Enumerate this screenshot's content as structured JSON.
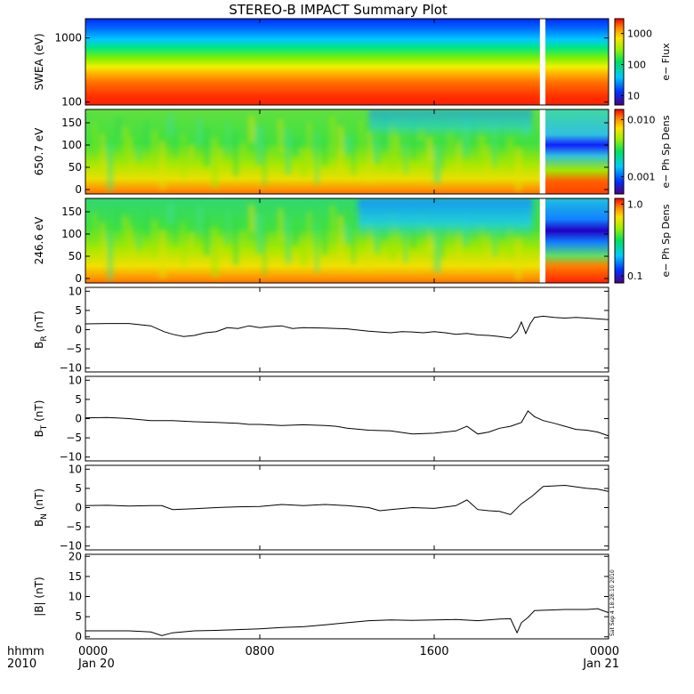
{
  "title": "STEREO-B IMPACT Summary Plot",
  "stamp": "Sat Sep  4 18:28:10 2010",
  "time_axis": {
    "row1_label": "hhmm",
    "row2_label": "2010",
    "ticks": [
      {
        "t": 0,
        "label": "0000",
        "date": "Jan 20"
      },
      {
        "t": 8,
        "label": "0800",
        "date": ""
      },
      {
        "t": 16,
        "label": "1600",
        "date": ""
      },
      {
        "t": 24,
        "label": "0000",
        "date": "Jan 21"
      }
    ],
    "xlim": [
      0,
      24
    ],
    "data_gap_hours": [
      20.85,
      21.1
    ]
  },
  "chart_data": [
    {
      "type": "heatmap",
      "id": "swea",
      "ylabel": "SWEA (eV)",
      "yscale": "log",
      "ylim": [
        90,
        2000
      ],
      "yticks": [
        {
          "v": 100,
          "label": "100"
        },
        {
          "v": 1000,
          "label": "1000"
        }
      ],
      "colorbar": {
        "label": "e− Flux",
        "scale": "log",
        "range": [
          5,
          3000
        ],
        "ticks": [
          {
            "v": 10,
            "label": "10"
          },
          {
            "v": 100,
            "label": "100"
          },
          {
            "v": 1000,
            "label": "1000"
          }
        ]
      },
      "description_bands_low_to_high_energy": [
        "high flux (red/orange) below ~250 eV",
        "yellow/green near 300-600 eV",
        "cyan/blue above ~900 eV"
      ]
    },
    {
      "type": "heatmap",
      "id": "pad650",
      "ylabel": "650.7 eV",
      "ylim": [
        -10,
        180
      ],
      "yticks": [
        {
          "v": 0,
          "label": "0"
        },
        {
          "v": 50,
          "label": "50"
        },
        {
          "v": 100,
          "label": "100"
        },
        {
          "v": 150,
          "label": "150"
        }
      ],
      "colorbar": {
        "label": "e− Ph Sp Dens",
        "scale": "log",
        "range": [
          0.0005,
          0.015
        ],
        "ticks": [
          {
            "v": 0.001,
            "label": "0.001"
          },
          {
            "v": 0.01,
            "label": "0.010"
          }
        ]
      }
    },
    {
      "type": "heatmap",
      "id": "pad246",
      "ylabel": "246.6 eV",
      "ylim": [
        -10,
        180
      ],
      "yticks": [
        {
          "v": 0,
          "label": "0"
        },
        {
          "v": 50,
          "label": "50"
        },
        {
          "v": 100,
          "label": "100"
        },
        {
          "v": 150,
          "label": "150"
        }
      ],
      "colorbar": {
        "label": "e− Ph Sp Dens",
        "scale": "log",
        "range": [
          0.08,
          1.2
        ],
        "ticks": [
          {
            "v": 0.1,
            "label": "0.1"
          },
          {
            "v": 1.0,
            "label": "1.0"
          }
        ]
      }
    },
    {
      "type": "line",
      "id": "br",
      "ylabel": "B",
      "ylabel_sub": "R",
      "ylabel_unit": " (nT)",
      "ylim": [
        -11,
        11
      ],
      "yticks": [
        {
          "v": -10,
          "label": "−10"
        },
        {
          "v": -5,
          "label": "−5"
        },
        {
          "v": 0,
          "label": "0"
        },
        {
          "v": 5,
          "label": "5"
        },
        {
          "v": 10,
          "label": "10"
        }
      ],
      "x": [
        0,
        1,
        2,
        3,
        3.6,
        4,
        4.5,
        5,
        5.5,
        6,
        6.5,
        7,
        7.5,
        8,
        8.5,
        9,
        9.5,
        10,
        11,
        12,
        13,
        13.5,
        14,
        14.5,
        15,
        15.5,
        16,
        16.5,
        17,
        17.5,
        18,
        18.5,
        19,
        19.5,
        19.8,
        20,
        20.2,
        20.4,
        20.6,
        21,
        21.5,
        22,
        22.5,
        23,
        23.5,
        24
      ],
      "y": [
        1.5,
        1.6,
        1.6,
        1.0,
        -0.5,
        -1.2,
        -1.8,
        -1.5,
        -0.8,
        -0.5,
        0.5,
        0.3,
        1.0,
        0.5,
        0.8,
        1.0,
        0.3,
        0.5,
        0.4,
        0.2,
        -0.4,
        -0.6,
        -0.8,
        -0.5,
        -0.6,
        -0.8,
        -0.5,
        -0.8,
        -1.2,
        -1.0,
        -1.4,
        -1.5,
        -1.8,
        -2.2,
        -0.5,
        2.0,
        -1.0,
        1.5,
        3.2,
        3.5,
        3.2,
        3.0,
        3.2,
        3.0,
        2.8,
        2.6
      ]
    },
    {
      "type": "line",
      "id": "bt",
      "ylabel": "B",
      "ylabel_sub": "T",
      "ylabel_unit": " (nT)",
      "ylim": [
        -11,
        11
      ],
      "yticks": [
        {
          "v": -10,
          "label": "−10"
        },
        {
          "v": -5,
          "label": "−5"
        },
        {
          "v": 0,
          "label": "0"
        },
        {
          "v": 5,
          "label": "5"
        },
        {
          "v": 10,
          "label": "10"
        }
      ],
      "x": [
        0,
        1,
        2,
        3,
        4,
        5,
        6,
        7,
        7.5,
        8,
        9,
        10,
        11,
        11.5,
        12,
        13,
        14,
        15,
        16,
        17,
        17.5,
        18,
        18.5,
        19,
        19.5,
        20,
        20.3,
        20.6,
        21,
        21.5,
        22,
        22.5,
        23,
        23.5,
        24
      ],
      "y": [
        0.2,
        0.3,
        0.0,
        -0.5,
        -0.5,
        -0.8,
        -1.0,
        -1.2,
        -1.5,
        -1.5,
        -1.8,
        -1.6,
        -1.8,
        -2.0,
        -2.5,
        -3.0,
        -3.2,
        -4.0,
        -3.8,
        -3.2,
        -2.0,
        -4.0,
        -3.5,
        -2.5,
        -2.0,
        -1.0,
        2.0,
        0.5,
        -0.5,
        -1.2,
        -2.0,
        -2.8,
        -3.0,
        -3.5,
        -4.5
      ]
    },
    {
      "type": "line",
      "id": "bn",
      "ylabel": "B",
      "ylabel_sub": "N",
      "ylabel_unit": " (nT)",
      "ylim": [
        -11,
        11
      ],
      "yticks": [
        {
          "v": -10,
          "label": "−10"
        },
        {
          "v": -5,
          "label": "−5"
        },
        {
          "v": 0,
          "label": "0"
        },
        {
          "v": 5,
          "label": "5"
        },
        {
          "v": 10,
          "label": "10"
        }
      ],
      "x": [
        0,
        1,
        2,
        3,
        3.5,
        4,
        5,
        6,
        7,
        8,
        9,
        10,
        11,
        12,
        13,
        13.5,
        14,
        15,
        16,
        17,
        17.5,
        18,
        18.5,
        19,
        19.5,
        20,
        20.5,
        21,
        22,
        23,
        23.5,
        24
      ],
      "y": [
        0.5,
        0.6,
        0.4,
        0.5,
        0.5,
        -0.5,
        -0.3,
        0.0,
        0.2,
        0.3,
        0.8,
        0.5,
        0.8,
        0.5,
        0.0,
        -0.8,
        -0.5,
        0.0,
        -0.2,
        0.5,
        2.0,
        -0.5,
        -0.8,
        -1.0,
        -1.8,
        1.0,
        3.0,
        5.5,
        5.8,
        5.0,
        4.8,
        4.2
      ]
    },
    {
      "type": "line",
      "id": "bmag",
      "ylabel": "|B| (nT)",
      "ylabel_sub": "",
      "ylabel_unit": "",
      "ylim": [
        -0.5,
        20.5
      ],
      "yticks": [
        {
          "v": 0,
          "label": "0"
        },
        {
          "v": 5,
          "label": "5"
        },
        {
          "v": 10,
          "label": "10"
        },
        {
          "v": 15,
          "label": "15"
        },
        {
          "v": 20,
          "label": "20"
        }
      ],
      "x": [
        0,
        1,
        2,
        3,
        3.5,
        4,
        5,
        6,
        7,
        8,
        9,
        10,
        11,
        12,
        13,
        14,
        15,
        16,
        17,
        18,
        19,
        19.5,
        19.8,
        20,
        20.3,
        20.6,
        21,
        22,
        23,
        23.5,
        24
      ],
      "y": [
        1.5,
        1.5,
        1.5,
        1.2,
        0.3,
        1.0,
        1.5,
        1.6,
        1.8,
        2.0,
        2.3,
        2.5,
        3.0,
        3.5,
        4.0,
        4.2,
        4.1,
        4.2,
        4.3,
        4.0,
        4.4,
        4.5,
        1.0,
        3.5,
        4.8,
        6.5,
        6.6,
        6.8,
        6.8,
        7.0,
        6.0
      ]
    }
  ]
}
